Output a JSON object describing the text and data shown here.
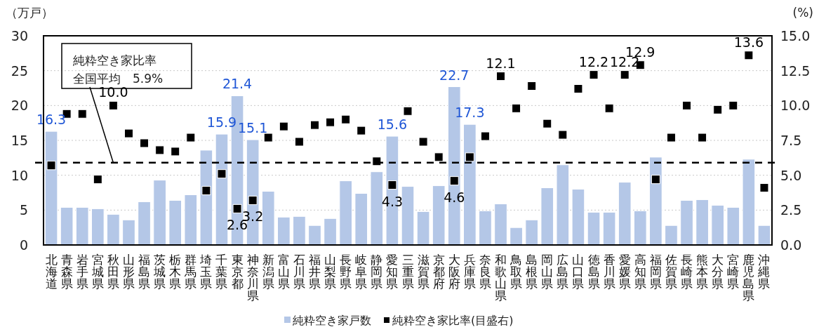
{
  "chart_data": {
    "type": "bar",
    "categories": [
      "北海道",
      "青森県",
      "岩手県",
      "宮城県",
      "秋田県",
      "山形県",
      "福島県",
      "茨城県",
      "栃木県",
      "群馬県",
      "埼玉県",
      "千葉県",
      "東京都",
      "神奈川県",
      "新潟県",
      "富山県",
      "石川県",
      "福井県",
      "山梨県",
      "長野県",
      "岐阜県",
      "静岡県",
      "愛知県",
      "三重県",
      "滋賀県",
      "京都府",
      "大阪府",
      "兵庫県",
      "奈良県",
      "和歌山県",
      "鳥取県",
      "島根県",
      "岡山県",
      "広島県",
      "山口県",
      "徳島県",
      "香川県",
      "愛媛県",
      "高知県",
      "福岡県",
      "佐賀県",
      "長崎県",
      "熊本県",
      "大分県",
      "宮崎県",
      "鹿児島県",
      "沖縄県"
    ],
    "series": [
      {
        "name": "純粋空き家戸数",
        "color": "#b4c7e7",
        "values": [
          16.3,
          5.4,
          5.4,
          5.2,
          4.4,
          3.6,
          6.2,
          9.3,
          6.4,
          7.2,
          13.6,
          15.9,
          21.4,
          15.1,
          7.7,
          4.0,
          4.1,
          2.8,
          3.8,
          9.2,
          7.4,
          10.5,
          15.6,
          8.4,
          4.8,
          8.5,
          22.7,
          17.3,
          4.9,
          5.9,
          2.5,
          3.6,
          8.2,
          11.5,
          8.0,
          4.7,
          4.7,
          9.0,
          4.9,
          12.6,
          2.8,
          6.4,
          6.5,
          5.7,
          5.4,
          12.3,
          2.8
        ],
        "value_labels": [
          "16.3",
          null,
          null,
          null,
          null,
          null,
          null,
          null,
          null,
          null,
          null,
          "15.9",
          "21.4",
          "15.1",
          null,
          null,
          null,
          null,
          null,
          null,
          null,
          null,
          "15.6",
          null,
          null,
          null,
          "22.7",
          "17.3",
          null,
          null,
          null,
          null,
          null,
          null,
          null,
          null,
          null,
          null,
          null,
          null,
          null,
          null,
          null,
          null,
          null,
          null,
          null
        ]
      },
      {
        "name": "純粋空き家比率(目盛右)",
        "type": "scatter",
        "axis": "y2",
        "marker": "square",
        "color": "#000000",
        "values": [
          5.7,
          9.4,
          9.4,
          4.7,
          10.0,
          8.0,
          7.3,
          6.8,
          6.7,
          7.7,
          3.9,
          5.1,
          2.6,
          3.2,
          7.7,
          8.5,
          7.4,
          8.6,
          8.8,
          9.0,
          8.2,
          6.0,
          4.3,
          9.6,
          7.4,
          6.3,
          4.6,
          6.3,
          7.8,
          12.1,
          9.8,
          11.4,
          8.7,
          7.9,
          11.2,
          12.2,
          9.8,
          12.2,
          12.9,
          4.7,
          7.7,
          10.0,
          7.7,
          9.7,
          10.0,
          13.6,
          4.1
        ],
        "value_labels": [
          null,
          null,
          null,
          null,
          "10.0",
          null,
          null,
          null,
          null,
          null,
          null,
          null,
          "2.6",
          "3.2",
          null,
          null,
          null,
          null,
          null,
          null,
          null,
          null,
          "4.3",
          null,
          null,
          null,
          "4.6",
          null,
          null,
          "12.1",
          null,
          null,
          null,
          null,
          null,
          "12.2",
          null,
          "12.2",
          "12.9",
          null,
          null,
          null,
          null,
          null,
          null,
          "13.6",
          null
        ]
      }
    ],
    "ylabel": "（万戸）",
    "y2label": "(%)",
    "ylim": [
      0,
      30
    ],
    "yticks": [
      0,
      5,
      10,
      15,
      20,
      25,
      30
    ],
    "y2lim": [
      0,
      15
    ],
    "y2ticks": [
      {
        "value": 0,
        "label": "0.0"
      },
      {
        "value": 2.5,
        "label": "2.5"
      },
      {
        "value": 5,
        "label": "5.0"
      },
      {
        "value": 7.5,
        "label": "7.5"
      },
      {
        "value": 10,
        "label": "10.0"
      },
      {
        "value": 12.5,
        "label": "12.5"
      },
      {
        "value": 15,
        "label": "15.0"
      }
    ],
    "ref_lines": [
      {
        "axis": "y2",
        "value": 5.9,
        "color": "#000000",
        "line_style": "dashed"
      }
    ],
    "annotations": [
      "純粋空き家比率",
      {
        "text": "全国平均　5.9%",
        "x": "秋田県",
        "y": 11.8
      }
    ],
    "grid": "y",
    "legend": "bottom"
  }
}
